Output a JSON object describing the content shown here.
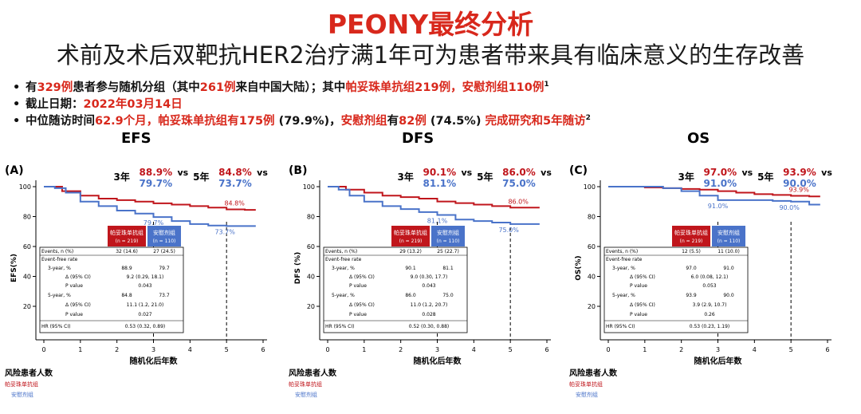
{
  "title": "PEONY最终分析",
  "subtitle": "术前及术后双靶抗HER2治疗满1年可为患者带来具有临床意义的生存改善",
  "bullets": [
    {
      "parts": [
        {
          "t": "有",
          "c": "k"
        },
        {
          "t": "329例",
          "c": "r"
        },
        {
          "t": "患者参与随机分组（其中",
          "c": "k"
        },
        {
          "t": "261例",
          "c": "r"
        },
        {
          "t": "来自中国大陆）；其中",
          "c": "k"
        },
        {
          "t": "帕妥珠单抗组219例，安慰剂组110例",
          "c": "r"
        },
        {
          "t": "1",
          "c": "sup"
        }
      ]
    },
    {
      "parts": [
        {
          "t": "截止日期：",
          "c": "k"
        },
        {
          "t": "2022年03月14日",
          "c": "r"
        }
      ]
    },
    {
      "parts": [
        {
          "t": "中位随访时间",
          "c": "k"
        },
        {
          "t": "62.9个月，帕妥珠单抗组有175例",
          "c": "r"
        },
        {
          "t": " (79.9%)，",
          "c": "k"
        },
        {
          "t": "安慰剂组",
          "c": "r"
        },
        {
          "t": "有",
          "c": "k"
        },
        {
          "t": "82例",
          "c": "r"
        },
        {
          "t": " (74.5%) ",
          "c": "k"
        },
        {
          "t": "完成研究和5年随访",
          "c": "r"
        },
        {
          "t": "2",
          "c": "sup"
        }
      ]
    }
  ],
  "colors": {
    "red": "#c0161c",
    "blue": "#4a73c9",
    "title_red": "#d8281c",
    "text_blue": "#2f5fb0"
  },
  "common": {
    "x_ticks": [
      "0",
      "1",
      "2",
      "3",
      "4",
      "5",
      "6"
    ],
    "y_ticks": [
      "20",
      "40",
      "60",
      "80",
      "100"
    ],
    "xlabel": "随机化后年数",
    "risk_label": "风险患者人数",
    "arm1": "帕妥珠单抗组",
    "arm2": "安慰剂组",
    "arm1_n": "(n = 219)",
    "arm2_n": "(n = 110)",
    "y3_label": "3年",
    "y5_label": "5年",
    "vs": "vs",
    "table_labels": {
      "events": "Events, n (%)",
      "efr": "Event-free rate",
      "y3": "3-year, %",
      "y5": "5-year, %",
      "delta": "Δ (95% CI)",
      "p": "P value",
      "hr": "HR (95% CI)"
    }
  },
  "chart_data": [
    {
      "type": "line",
      "title": "EFS",
      "panel_letter": "(A)",
      "ylabel": "EFS(%)",
      "xlabel": "随机化后年数",
      "xlim": [
        0,
        6
      ],
      "ylim": [
        0,
        100
      ],
      "landmark_3y": {
        "pert": "88.9%",
        "plac": "79.7%"
      },
      "landmark_5y": {
        "pert": "84.8%",
        "plac": "73.7%"
      },
      "series": [
        {
          "name": "帕妥珠单抗组",
          "x": [
            0,
            0.5,
            1,
            1.5,
            2,
            2.5,
            3,
            3.5,
            4,
            4.5,
            5,
            5.5,
            5.8
          ],
          "y": [
            100,
            97,
            94,
            92,
            91,
            90,
            88.9,
            88,
            87,
            86,
            84.8,
            84.5,
            84.5
          ]
        },
        {
          "name": "安慰剂组",
          "x": [
            0,
            0.3,
            0.6,
            1,
            1.5,
            2,
            2.5,
            3,
            3.5,
            4,
            4.5,
            5,
            5.5,
            5.8
          ],
          "y": [
            100,
            99,
            96,
            90,
            87,
            84,
            82,
            79.7,
            77,
            75,
            74,
            73.7,
            73.7,
            73.7
          ]
        }
      ],
      "table": {
        "events": [
          "32 (14.6)",
          "27 (24.5)"
        ],
        "y3": [
          "88.9",
          "79.7"
        ],
        "d3": "9.2 (0.29, 18.1)",
        "p3": "0.043",
        "y5": [
          "84.8",
          "73.7"
        ],
        "d5": "11.1 (1.2, 21.0)",
        "p5": "0.027",
        "hr": "0.53 (0.32, 0.89)"
      }
    },
    {
      "type": "line",
      "title": "DFS",
      "panel_letter": "(B)",
      "ylabel": "DFS (%)",
      "xlabel": "随机化后年数",
      "xlim": [
        0,
        6
      ],
      "ylim": [
        0,
        100
      ],
      "landmark_3y": {
        "pert": "90.1%",
        "plac": "81.1%"
      },
      "landmark_5y": {
        "pert": "86.0%",
        "plac": "75.0%"
      },
      "series": [
        {
          "name": "帕妥珠单抗组",
          "x": [
            0,
            0.5,
            1,
            1.5,
            2,
            2.5,
            3,
            3.5,
            4,
            4.5,
            5,
            5.5,
            5.8
          ],
          "y": [
            100,
            98,
            96,
            94,
            93,
            92,
            90.1,
            89,
            88,
            87,
            86,
            86,
            86
          ]
        },
        {
          "name": "安慰剂组",
          "x": [
            0,
            0.3,
            0.6,
            1,
            1.5,
            2,
            2.5,
            3,
            3.5,
            4,
            4.5,
            5,
            5.5,
            5.8
          ],
          "y": [
            100,
            98,
            94,
            90,
            87,
            85,
            83,
            81.1,
            78,
            77,
            76,
            75,
            75,
            75
          ]
        }
      ],
      "table": {
        "events": [
          "29 (13.2)",
          "25 (22.7)"
        ],
        "y3": [
          "90.1",
          "81.1"
        ],
        "d3": "9.0 (0.30, 17.7)",
        "p3": "0.043",
        "y5": [
          "86.0",
          "75.0"
        ],
        "d5": "11.0 (1.2, 20.7)",
        "p5": "0.028",
        "hr": "0.52 (0.30, 0.88)"
      }
    },
    {
      "type": "line",
      "title": "OS",
      "panel_letter": "(C)",
      "ylabel": "OS(%)",
      "xlabel": "随机化后年数",
      "xlim": [
        0,
        6
      ],
      "ylim": [
        0,
        100
      ],
      "landmark_3y": {
        "pert": "97.0%",
        "plac": "91.0%"
      },
      "landmark_5y": {
        "pert": "93.9%",
        "plac": "90.0%"
      },
      "series": [
        {
          "name": "帕妥珠单抗组",
          "x": [
            0,
            1,
            1.5,
            2,
            2.5,
            3,
            3.5,
            4,
            4.5,
            5,
            5.5,
            5.8
          ],
          "y": [
            100,
            99.5,
            99,
            98.5,
            98,
            97,
            96,
            95,
            94.5,
            93.9,
            93.5,
            93.5
          ]
        },
        {
          "name": "安慰剂组",
          "x": [
            0,
            1,
            1.5,
            2,
            2.5,
            3,
            3.5,
            4,
            4.5,
            5,
            5.5,
            5.8
          ],
          "y": [
            100,
            100,
            99,
            97,
            94,
            91,
            91,
            91,
            90.5,
            90,
            88,
            88
          ]
        }
      ],
      "table": {
        "events": [
          "12 (5.5)",
          "11 (10.0)"
        ],
        "y3": [
          "97.0",
          "91.0"
        ],
        "d3": "6.0 (0.08, 12.1)",
        "p3": "0.053",
        "y5": [
          "93.9",
          "90.0"
        ],
        "d5": "3.9 (2.9, 10.7)",
        "p5": "0.26",
        "hr": "0.53 (0.23, 1.19)"
      }
    }
  ]
}
